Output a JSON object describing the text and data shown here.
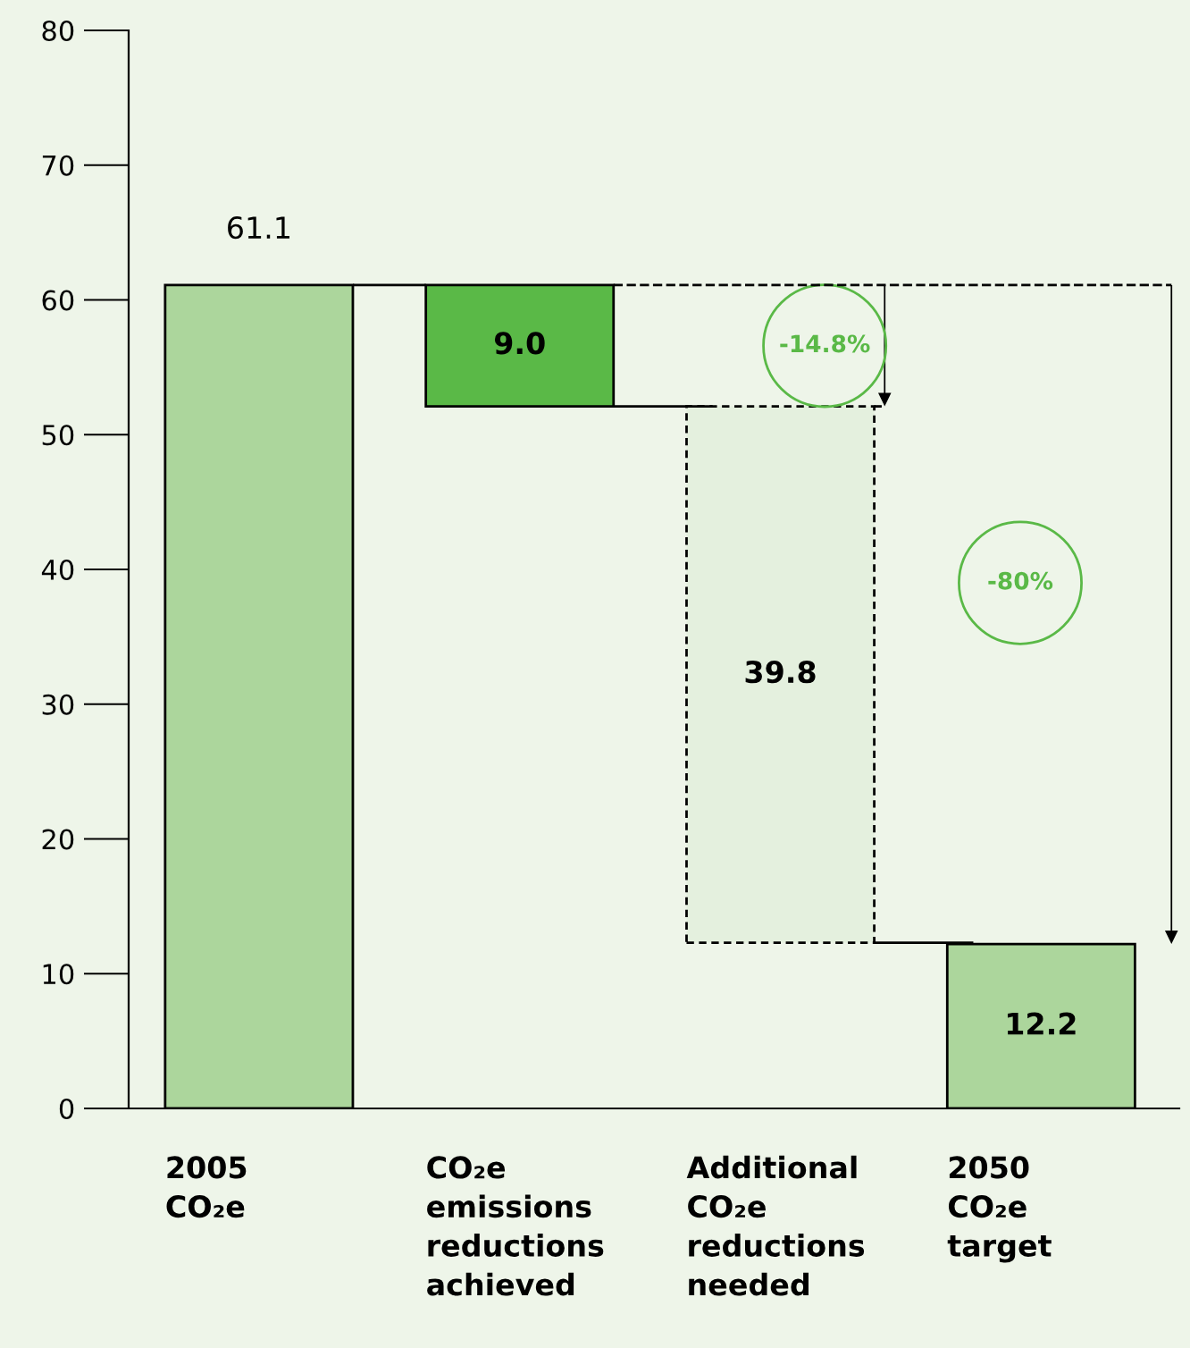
{
  "chart_data": {
    "type": "bar",
    "categories": [
      "2005\nCO₂e",
      "CO₂e\nemissions\nreductions\nachieved",
      "Additional\nCO₂e\nreductions\nneeded",
      "2050\nCO₂e\ntarget"
    ],
    "series": [
      {
        "base": [
          0,
          52.1,
          null,
          0
        ],
        "values": [
          61.1,
          9.0,
          null,
          12.2
        ],
        "colors": [
          "#acd69c",
          "#5ab947",
          null,
          "#acd69c"
        ],
        "value_labels": [
          "61.1",
          "9.0",
          null,
          "12.2"
        ]
      },
      {
        "base": [
          null,
          null,
          12.3,
          null
        ],
        "values": [
          null,
          null,
          39.8,
          null
        ],
        "color": "#e4f0de",
        "line_style": "dashed",
        "value_labels": [
          null,
          null,
          "39.8",
          null
        ]
      }
    ],
    "ylim": [
      0,
      80
    ],
    "yticks": [
      0,
      10,
      20,
      30,
      40,
      50,
      60,
      70,
      80
    ],
    "annotations": [
      "-14.8%",
      "-80%"
    ],
    "ref_lines": [
      {
        "axis": "y",
        "value": 61.1,
        "color": "#000000",
        "line_style": "dashed"
      }
    ],
    "grid": false
  }
}
